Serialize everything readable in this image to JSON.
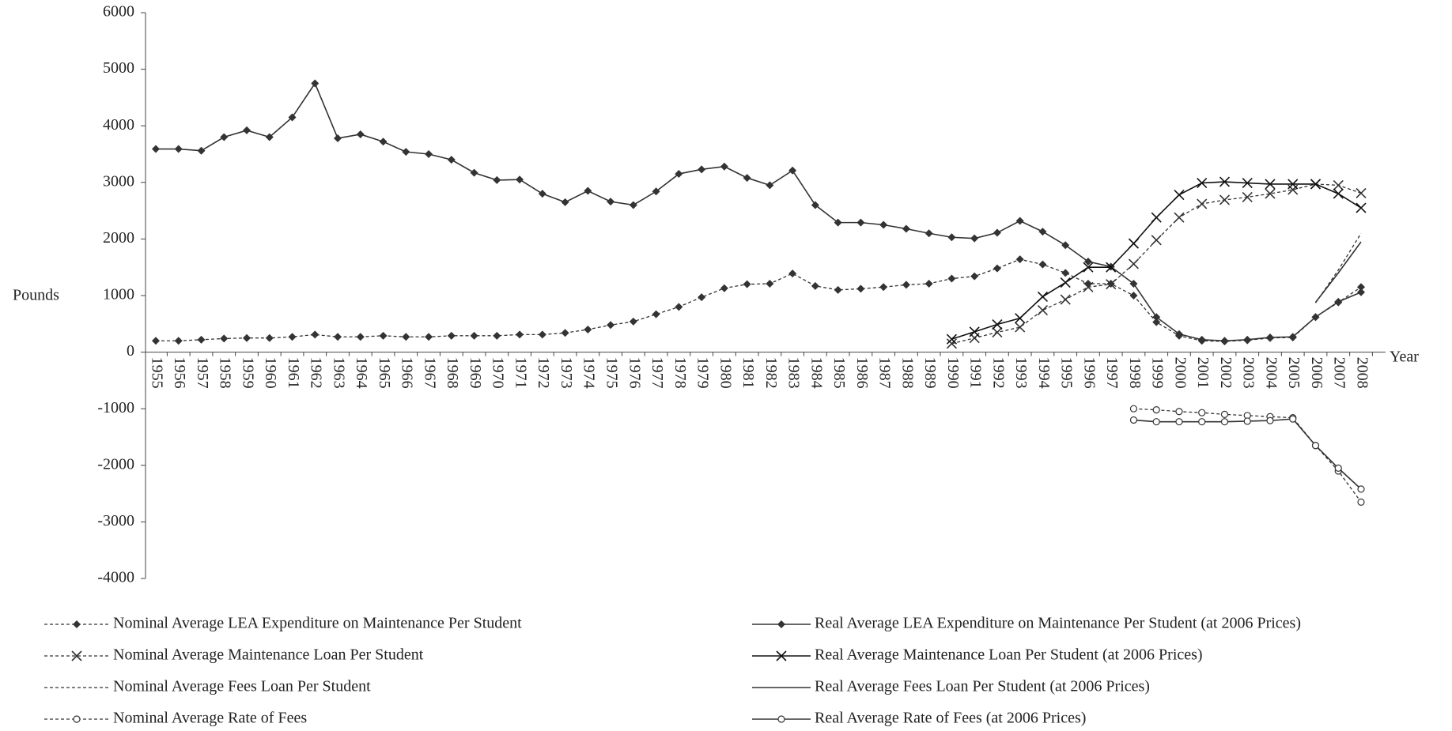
{
  "chart_data": {
    "type": "line",
    "categories": [
      "1955",
      "1956",
      "1957",
      "1958",
      "1959",
      "1960",
      "1961",
      "1962",
      "1963",
      "1964",
      "1965",
      "1966",
      "1967",
      "1968",
      "1969",
      "1970",
      "1971",
      "1972",
      "1973",
      "1974",
      "1975",
      "1976",
      "1977",
      "1978",
      "1979",
      "1980",
      "1981",
      "1982",
      "1983",
      "1984",
      "1985",
      "1986",
      "1987",
      "1988",
      "1989",
      "1990",
      "1991",
      "1992",
      "1993",
      "1994",
      "1995",
      "1996",
      "1997",
      "1998",
      "1999",
      "2000",
      "2001",
      "2002",
      "2003",
      "2004",
      "2005",
      "2006",
      "2007",
      "2008"
    ],
    "y_label": "Pounds",
    "x_label": "Year",
    "ylim": [
      -4000,
      6000
    ],
    "yticks": [
      -4000,
      -3000,
      -2000,
      -1000,
      0,
      1000,
      2000,
      3000,
      4000,
      5000,
      6000
    ],
    "series": [
      {
        "name": "Nominal Average LEA Expenditure on Maintenance Per Student",
        "color": "#333333",
        "dashed": true,
        "marker": "diamond",
        "values": [
          200,
          200,
          220,
          240,
          250,
          250,
          270,
          310,
          270,
          270,
          290,
          270,
          270,
          290,
          290,
          290,
          310,
          310,
          340,
          400,
          480,
          540,
          670,
          800,
          970,
          1130,
          1200,
          1210,
          1390,
          1170,
          1100,
          1120,
          1150,
          1190,
          1210,
          1300,
          1340,
          1480,
          1640,
          1550,
          1400,
          1210,
          1210,
          1000,
          530,
          290,
          200,
          190,
          210,
          250,
          260,
          620,
          880,
          1150
        ]
      },
      {
        "name": "Real Average LEA Expenditure on Maintenance Per Student (at 2006 Prices)",
        "color": "#333333",
        "dashed": false,
        "marker": "diamond",
        "values": [
          3590,
          3590,
          3560,
          3800,
          3920,
          3800,
          4150,
          4750,
          3780,
          3850,
          3720,
          3540,
          3500,
          3400,
          3170,
          3040,
          3050,
          2800,
          2650,
          2850,
          2660,
          2600,
          2840,
          3150,
          3230,
          3280,
          3080,
          2950,
          3210,
          2600,
          2290,
          2290,
          2250,
          2180,
          2100,
          2030,
          2010,
          2110,
          2320,
          2130,
          1890,
          1600,
          1510,
          1210,
          620,
          320,
          220,
          200,
          220,
          260,
          270,
          620,
          890,
          1060
        ]
      },
      {
        "name": "Nominal Average Maintenance Loan Per Student",
        "color": "#333333",
        "dashed": true,
        "marker": "x",
        "values": [
          null,
          null,
          null,
          null,
          null,
          null,
          null,
          null,
          null,
          null,
          null,
          null,
          null,
          null,
          null,
          null,
          null,
          null,
          null,
          null,
          null,
          null,
          null,
          null,
          null,
          null,
          null,
          null,
          null,
          null,
          null,
          null,
          null,
          null,
          null,
          150,
          250,
          350,
          440,
          740,
          930,
          1150,
          1200,
          1560,
          1980,
          2380,
          2620,
          2690,
          2740,
          2800,
          2870,
          2970,
          2950,
          2810
        ]
      },
      {
        "name": "Real Average Maintenance Loan Per Student (at 2006 Prices)",
        "color": "#111111",
        "dashed": false,
        "marker": "x",
        "values": [
          null,
          null,
          null,
          null,
          null,
          null,
          null,
          null,
          null,
          null,
          null,
          null,
          null,
          null,
          null,
          null,
          null,
          null,
          null,
          null,
          null,
          null,
          null,
          null,
          null,
          null,
          null,
          null,
          null,
          null,
          null,
          null,
          null,
          null,
          null,
          230,
          360,
          490,
          600,
          980,
          1230,
          1500,
          1500,
          1920,
          2380,
          2780,
          2990,
          3010,
          2990,
          2970,
          2970,
          2970,
          2800,
          2550
        ]
      },
      {
        "name": "Nominal Average Fees Loan Per Student",
        "color": "#333333",
        "dashed": true,
        "marker": "none",
        "values": [
          null,
          null,
          null,
          null,
          null,
          null,
          null,
          null,
          null,
          null,
          null,
          null,
          null,
          null,
          null,
          null,
          null,
          null,
          null,
          null,
          null,
          null,
          null,
          null,
          null,
          null,
          null,
          null,
          null,
          null,
          null,
          null,
          null,
          null,
          null,
          null,
          null,
          null,
          null,
          null,
          null,
          null,
          null,
          null,
          null,
          null,
          null,
          null,
          null,
          null,
          null,
          870,
          1450,
          2100
        ]
      },
      {
        "name": "Real Average Fees Loan Per Student (at 2006 Prices)",
        "color": "#333333",
        "dashed": false,
        "marker": "none",
        "values": [
          null,
          null,
          null,
          null,
          null,
          null,
          null,
          null,
          null,
          null,
          null,
          null,
          null,
          null,
          null,
          null,
          null,
          null,
          null,
          null,
          null,
          null,
          null,
          null,
          null,
          null,
          null,
          null,
          null,
          null,
          null,
          null,
          null,
          null,
          null,
          null,
          null,
          null,
          null,
          null,
          null,
          null,
          null,
          null,
          null,
          null,
          null,
          null,
          null,
          null,
          null,
          880,
          1400,
          1950
        ]
      },
      {
        "name": "Nominal Average Rate of Fees",
        "color": "#333333",
        "dashed": true,
        "marker": "circle",
        "values": [
          null,
          null,
          null,
          null,
          null,
          null,
          null,
          null,
          null,
          null,
          null,
          null,
          null,
          null,
          null,
          null,
          null,
          null,
          null,
          null,
          null,
          null,
          null,
          null,
          null,
          null,
          null,
          null,
          null,
          null,
          null,
          null,
          null,
          null,
          null,
          null,
          null,
          null,
          null,
          null,
          null,
          null,
          null,
          -1000,
          -1020,
          -1050,
          -1070,
          -1100,
          -1120,
          -1140,
          -1160,
          -1650,
          -2100,
          -2650
        ]
      },
      {
        "name": "Real Average Rate of Fees (at 2006 Prices)",
        "color": "#333333",
        "dashed": false,
        "marker": "circle",
        "values": [
          null,
          null,
          null,
          null,
          null,
          null,
          null,
          null,
          null,
          null,
          null,
          null,
          null,
          null,
          null,
          null,
          null,
          null,
          null,
          null,
          null,
          null,
          null,
          null,
          null,
          null,
          null,
          null,
          null,
          null,
          null,
          null,
          null,
          null,
          null,
          null,
          null,
          null,
          null,
          null,
          null,
          null,
          null,
          -1200,
          -1230,
          -1230,
          -1230,
          -1230,
          -1220,
          -1210,
          -1180,
          -1650,
          -2050,
          -2420
        ]
      }
    ]
  }
}
